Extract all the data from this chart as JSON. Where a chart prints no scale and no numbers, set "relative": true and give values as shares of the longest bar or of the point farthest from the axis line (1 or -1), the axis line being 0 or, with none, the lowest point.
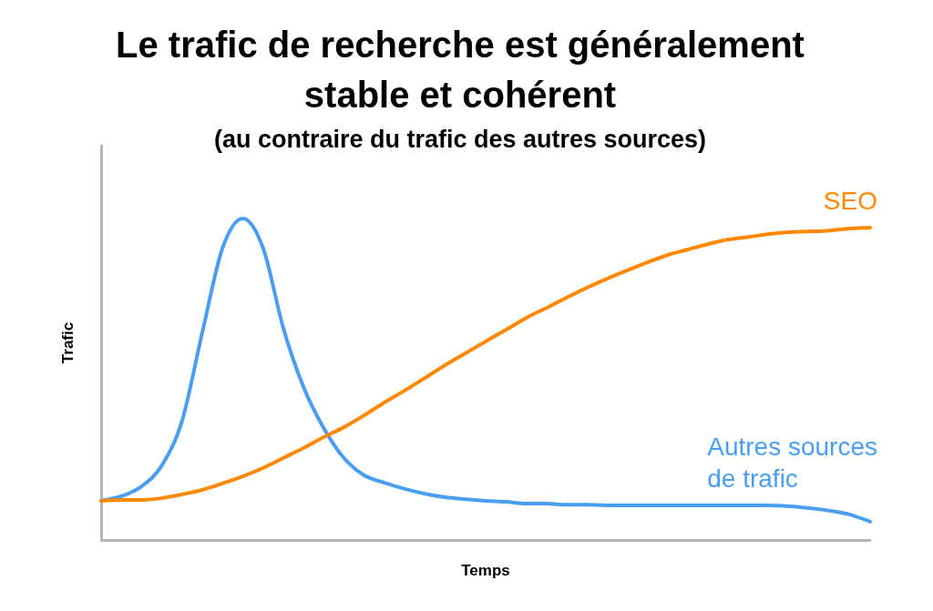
{
  "chart_data": {
    "type": "line",
    "title": "Le trafic de recherche est généralement stable et cohérent",
    "subtitle": "(au contraire du trafic des autres sources)",
    "xlabel": "Temps",
    "ylabel": "Trafic",
    "relative": true,
    "categories": [
      null,
      null,
      null,
      null,
      null,
      null,
      null,
      null,
      null,
      null,
      null,
      null,
      null,
      null,
      null,
      null,
      null,
      null,
      null,
      null,
      null,
      null,
      null,
      null,
      null,
      null,
      null,
      null,
      null,
      null,
      null,
      null,
      null,
      null,
      null,
      null,
      null,
      null,
      null
    ],
    "series": [
      {
        "name": "SEO",
        "color": "#ff8800",
        "values": [
          0.122,
          0.125,
          0.125,
          0.13,
          0.142,
          0.156,
          0.176,
          0.198,
          0.224,
          0.255,
          0.286,
          0.32,
          0.351,
          0.388,
          0.428,
          0.465,
          0.504,
          0.544,
          0.581,
          0.618,
          0.654,
          0.691,
          0.722,
          0.754,
          0.785,
          0.813,
          0.839,
          0.864,
          0.887,
          0.904,
          0.921,
          0.935,
          0.943,
          0.952,
          0.958,
          0.96,
          0.963,
          0.969,
          0.972
        ]
      },
      {
        "name": "Autres sources de trafic",
        "color": "#4a9ef0",
        "values": [
          0.122,
          0.136,
          0.167,
          0.232,
          0.371,
          0.646,
          0.909,
          1,
          0.909,
          0.66,
          0.476,
          0.348,
          0.255,
          0.201,
          0.178,
          0.159,
          0.144,
          0.133,
          0.127,
          0.122,
          0.119,
          0.113,
          0.113,
          0.11,
          0.11,
          0.108,
          0.108,
          0.108,
          0.108,
          0.108,
          0.108,
          0.108,
          0.108,
          0.108,
          0.105,
          0.099,
          0.091,
          0.079,
          0.057
        ]
      }
    ]
  }
}
